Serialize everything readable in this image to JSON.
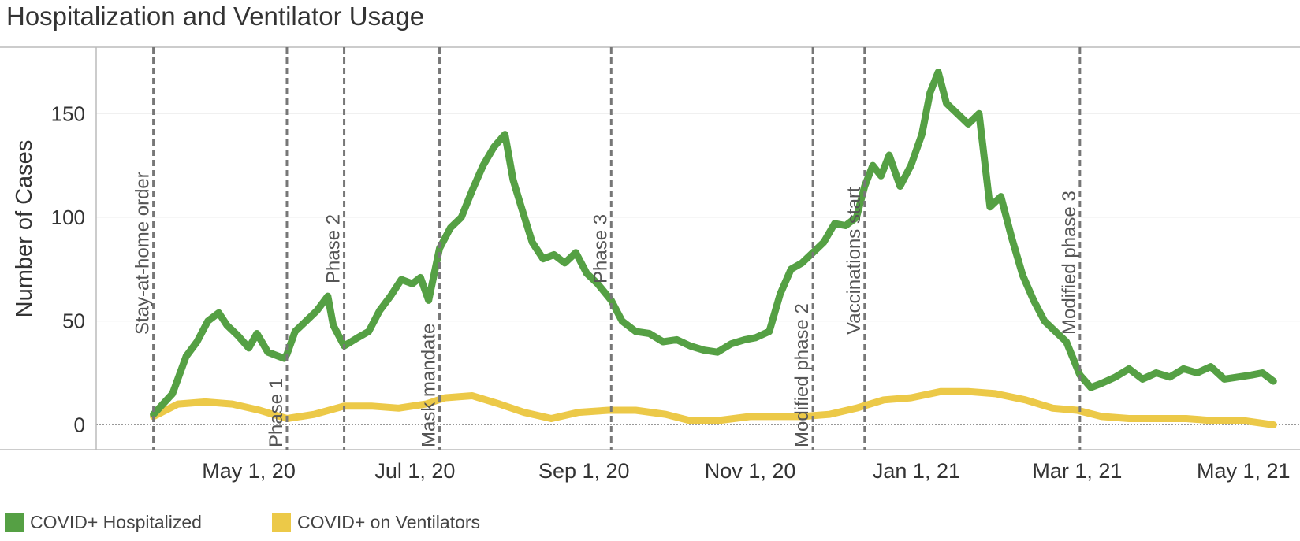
{
  "title": "Hospitalization and Ventilator Usage",
  "colors": {
    "hospitalized": "#55a044",
    "ventilators": "#ecc948",
    "event_line": "#777777",
    "axis": "#bbbbbb",
    "grid": "#ececec",
    "zero_line": "#999999",
    "text": "#333333"
  },
  "chart_data": {
    "type": "line",
    "title": "Hospitalization and Ventilator Usage",
    "xlabel": "",
    "ylabel": "Number of Cases",
    "x_start": "2020-03-06",
    "x_end": "2021-05-18",
    "ylim": [
      -12,
      182
    ],
    "yticks": [
      0,
      50,
      100,
      150
    ],
    "xticks": [
      {
        "date": "2020-05-01",
        "label": "May 1, 20"
      },
      {
        "date": "2020-07-01",
        "label": "Jul 1, 20"
      },
      {
        "date": "2020-09-01",
        "label": "Sep 1, 20"
      },
      {
        "date": "2020-11-01",
        "label": "Nov 1, 20"
      },
      {
        "date": "2021-01-01",
        "label": "Jan 1, 21"
      },
      {
        "date": "2021-03-01",
        "label": "Mar 1, 21"
      },
      {
        "date": "2021-05-01",
        "label": "May 1, 21"
      }
    ],
    "events": [
      {
        "date": "2020-03-27",
        "label": "Stay-at-home order",
        "anchor": "high"
      },
      {
        "date": "2020-05-15",
        "label": "Phase 1",
        "anchor": "low"
      },
      {
        "date": "2020-06-05",
        "label": "Phase 2",
        "anchor": "high"
      },
      {
        "date": "2020-07-10",
        "label": "Mask mandate",
        "anchor": "low"
      },
      {
        "date": "2020-09-11",
        "label": "Phase 3",
        "anchor": "high"
      },
      {
        "date": "2020-11-24",
        "label": "Modified phase 2",
        "anchor": "low"
      },
      {
        "date": "2020-12-13",
        "label": "Vaccinations start",
        "anchor": "high"
      },
      {
        "date": "2021-03-02",
        "label": "Modified phase 3",
        "anchor": "high"
      }
    ],
    "series": [
      {
        "name": "COVID+ Hospitalized",
        "dates": [
          "2020-03-27",
          "2020-04-03",
          "2020-04-08",
          "2020-04-12",
          "2020-04-16",
          "2020-04-20",
          "2020-04-23",
          "2020-04-27",
          "2020-05-01",
          "2020-05-04",
          "2020-05-08",
          "2020-05-12",
          "2020-05-14",
          "2020-05-15",
          "2020-05-18",
          "2020-05-22",
          "2020-05-26",
          "2020-05-30",
          "2020-06-01",
          "2020-06-05",
          "2020-06-10",
          "2020-06-14",
          "2020-06-18",
          "2020-06-22",
          "2020-06-26",
          "2020-06-30",
          "2020-07-03",
          "2020-07-06",
          "2020-07-10",
          "2020-07-14",
          "2020-07-18",
          "2020-07-22",
          "2020-07-26",
          "2020-07-30",
          "2020-08-03",
          "2020-08-06",
          "2020-08-09",
          "2020-08-13",
          "2020-08-17",
          "2020-08-21",
          "2020-08-25",
          "2020-08-29",
          "2020-09-02",
          "2020-09-06",
          "2020-09-11",
          "2020-09-15",
          "2020-09-20",
          "2020-09-25",
          "2020-09-30",
          "2020-10-05",
          "2020-10-10",
          "2020-10-15",
          "2020-10-20",
          "2020-10-25",
          "2020-10-30",
          "2020-11-03",
          "2020-11-08",
          "2020-11-12",
          "2020-11-16",
          "2020-11-20",
          "2020-11-24",
          "2020-11-28",
          "2020-12-02",
          "2020-12-06",
          "2020-12-10",
          "2020-12-13",
          "2020-12-16",
          "2020-12-19",
          "2020-12-22",
          "2020-12-26",
          "2020-12-30",
          "2021-01-03",
          "2021-01-06",
          "2021-01-09",
          "2021-01-12",
          "2021-01-16",
          "2021-01-20",
          "2021-01-24",
          "2021-01-28",
          "2021-02-01",
          "2021-02-05",
          "2021-02-09",
          "2021-02-13",
          "2021-02-17",
          "2021-02-21",
          "2021-02-25",
          "2021-03-02",
          "2021-03-06",
          "2021-03-10",
          "2021-03-15",
          "2021-03-20",
          "2021-03-25",
          "2021-03-30",
          "2021-04-04",
          "2021-04-09",
          "2021-04-14",
          "2021-04-19",
          "2021-04-24",
          "2021-04-29",
          "2021-05-04",
          "2021-05-08",
          "2021-05-12"
        ],
        "values": [
          5,
          15,
          33,
          40,
          50,
          54,
          48,
          43,
          37,
          44,
          35,
          33,
          32,
          34,
          45,
          50,
          55,
          62,
          48,
          38,
          42,
          45,
          55,
          62,
          70,
          68,
          71,
          60,
          85,
          95,
          100,
          113,
          125,
          134,
          140,
          118,
          105,
          88,
          80,
          82,
          78,
          83,
          73,
          68,
          60,
          50,
          45,
          44,
          40,
          41,
          38,
          36,
          35,
          39,
          41,
          42,
          45,
          63,
          75,
          78,
          83,
          88,
          97,
          96,
          100,
          115,
          125,
          120,
          130,
          115,
          125,
          140,
          160,
          170,
          155,
          150,
          145,
          150,
          105,
          110,
          90,
          72,
          60,
          50,
          45,
          40,
          24,
          18,
          20,
          23,
          27,
          22,
          25,
          23,
          27,
          25,
          28,
          22,
          23,
          24,
          25,
          21
        ]
      },
      {
        "name": "COVID+ on Ventilators",
        "dates": [
          "2020-03-27",
          "2020-04-05",
          "2020-04-15",
          "2020-04-25",
          "2020-05-05",
          "2020-05-15",
          "2020-05-25",
          "2020-06-05",
          "2020-06-15",
          "2020-06-25",
          "2020-07-05",
          "2020-07-12",
          "2020-07-22",
          "2020-08-01",
          "2020-08-10",
          "2020-08-20",
          "2020-08-30",
          "2020-09-10",
          "2020-09-20",
          "2020-10-01",
          "2020-10-10",
          "2020-10-20",
          "2020-11-01",
          "2020-11-10",
          "2020-11-20",
          "2020-11-30",
          "2020-12-10",
          "2020-12-20",
          "2020-12-30",
          "2021-01-10",
          "2021-01-20",
          "2021-01-30",
          "2021-02-10",
          "2021-02-20",
          "2021-03-01",
          "2021-03-10",
          "2021-03-20",
          "2021-04-01",
          "2021-04-10",
          "2021-04-20",
          "2021-05-01",
          "2021-05-12"
        ],
        "values": [
          4,
          10,
          11,
          10,
          7,
          3,
          5,
          9,
          9,
          8,
          10,
          13,
          14,
          10,
          6,
          3,
          6,
          7,
          7,
          5,
          2,
          2,
          4,
          4,
          4,
          5,
          8,
          12,
          13,
          16,
          16,
          15,
          12,
          8,
          7,
          4,
          3,
          3,
          3,
          2,
          2,
          0
        ]
      }
    ]
  },
  "legend": [
    {
      "label": "COVID+ Hospitalized",
      "color": "#55a044"
    },
    {
      "label": "COVID+ on Ventilators",
      "color": "#ecc948"
    }
  ]
}
